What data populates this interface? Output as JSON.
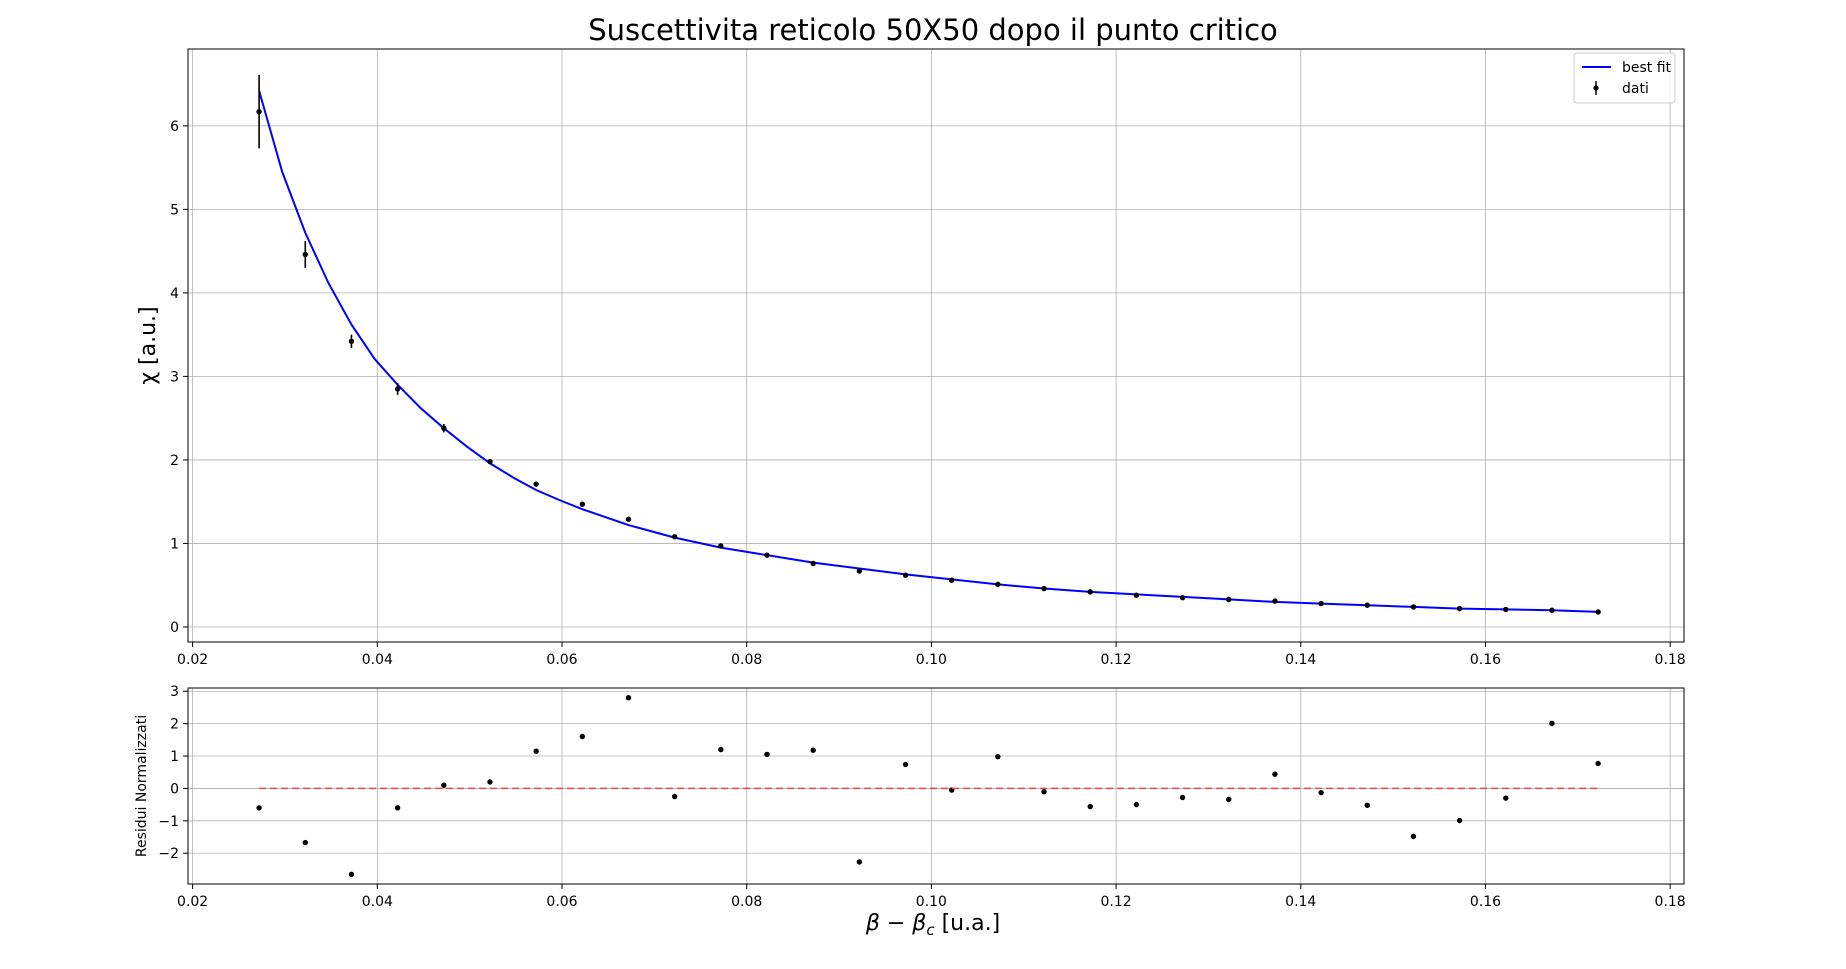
{
  "chart_data": [
    {
      "type": "scatter",
      "title": "Suscettivita reticolo 50X50 dopo il punto critico",
      "xlabel": "",
      "ylabel": "χ [a.u.]",
      "xlim": [
        0.0195,
        0.1815
      ],
      "ylim": [
        -0.18,
        6.92
      ],
      "xticks": [
        "0.02",
        "0.04",
        "0.06",
        "0.08",
        "0.10",
        "0.12",
        "0.14",
        "0.16",
        "0.18"
      ],
      "yticks": [
        "0",
        "1",
        "2",
        "3",
        "4",
        "5",
        "6"
      ],
      "grid": true,
      "legend": {
        "position": "top-right",
        "entries": [
          {
            "label": "best fit",
            "style": "line",
            "color": "#0000ff"
          },
          {
            "label": "dati",
            "style": "errorbar-point",
            "color": "#000000"
          }
        ]
      },
      "series": [
        {
          "name": "dati",
          "kind": "errorbar",
          "color": "#000000",
          "x": [
            0.0272,
            0.0322,
            0.0372,
            0.0422,
            0.0472,
            0.0522,
            0.0572,
            0.0622,
            0.0672,
            0.0722,
            0.0772,
            0.0822,
            0.0872,
            0.0922,
            0.0972,
            0.1022,
            0.1072,
            0.1122,
            0.1172,
            0.1222,
            0.1272,
            0.1322,
            0.1372,
            0.1422,
            0.1472,
            0.1522,
            0.1572,
            0.1622,
            0.1672,
            0.1722
          ],
          "y": [
            6.17,
            4.46,
            3.42,
            2.85,
            2.38,
            1.98,
            1.71,
            1.47,
            1.29,
            1.08,
            0.97,
            0.86,
            0.76,
            0.67,
            0.62,
            0.56,
            0.51,
            0.46,
            0.42,
            0.38,
            0.35,
            0.33,
            0.31,
            0.28,
            0.26,
            0.24,
            0.22,
            0.21,
            0.2,
            0.18
          ],
          "yerr": [
            0.44,
            0.16,
            0.08,
            0.07,
            0.05,
            0.03,
            0.03,
            0.02,
            0.02,
            0.02,
            0.02,
            0.02,
            0.01,
            0.01,
            0.01,
            0.01,
            0.01,
            0.01,
            0.01,
            0.01,
            0.01,
            0.01,
            0.01,
            0.01,
            0.01,
            0.01,
            0.01,
            0.01,
            0.01,
            0.01
          ]
        },
        {
          "name": "best fit",
          "kind": "line",
          "color": "#0000ff",
          "x": [
            0.0272,
            0.0297,
            0.0322,
            0.0347,
            0.0372,
            0.0397,
            0.0422,
            0.0447,
            0.0472,
            0.0497,
            0.0522,
            0.0547,
            0.0572,
            0.0597,
            0.0622,
            0.0672,
            0.0722,
            0.0772,
            0.0822,
            0.0872,
            0.0922,
            0.0972,
            0.1022,
            0.1072,
            0.1122,
            0.1172,
            0.1222,
            0.1272,
            0.1322,
            0.1372,
            0.1422,
            0.1472,
            0.1522,
            0.1572,
            0.1622,
            0.1672,
            0.1722
          ],
          "y": [
            6.42,
            5.45,
            4.72,
            4.12,
            3.62,
            3.21,
            2.9,
            2.62,
            2.38,
            2.16,
            1.96,
            1.79,
            1.64,
            1.52,
            1.41,
            1.22,
            1.07,
            0.95,
            0.86,
            0.77,
            0.7,
            0.63,
            0.57,
            0.51,
            0.46,
            0.42,
            0.39,
            0.36,
            0.33,
            0.3,
            0.28,
            0.26,
            0.24,
            0.22,
            0.21,
            0.2,
            0.18
          ]
        }
      ]
    },
    {
      "type": "scatter",
      "title": "",
      "xlabel": "β − β_c [u.a.]",
      "xlabel_parts": {
        "beta": "β",
        "minus": " − ",
        "beta_c": "β",
        "sub": "c",
        "unit": " [u.a.]"
      },
      "ylabel": "Residui Normalizzati",
      "xlim": [
        0.0195,
        0.1815
      ],
      "ylim": [
        -2.95,
        3.1
      ],
      "xticks": [
        "0.02",
        "0.04",
        "0.06",
        "0.08",
        "0.10",
        "0.12",
        "0.14",
        "0.16",
        "0.18"
      ],
      "yticks": [
        "−2",
        "−1",
        "0",
        "1",
        "2",
        "3"
      ],
      "ytick_values": [
        -2,
        -1,
        0,
        1,
        2,
        3
      ],
      "grid": true,
      "series": [
        {
          "name": "",
          "kind": "points",
          "color": "#000000",
          "x": [
            0.0272,
            0.0322,
            0.0372,
            0.0422,
            0.0472,
            0.0522,
            0.0572,
            0.0622,
            0.0672,
            0.0722,
            0.0772,
            0.0822,
            0.0872,
            0.0922,
            0.0972,
            0.1022,
            0.1072,
            0.1122,
            0.1172,
            0.1222,
            0.1272,
            0.1322,
            0.1372,
            0.1422,
            0.1472,
            0.1522,
            0.1572,
            0.1622,
            0.1672,
            0.1722
          ],
          "y": [
            -0.6,
            -1.67,
            -2.65,
            -0.6,
            0.1,
            0.2,
            1.15,
            1.6,
            2.8,
            -0.25,
            1.2,
            1.05,
            1.18,
            -2.27,
            0.74,
            -0.05,
            0.98,
            -0.1,
            -0.56,
            -0.5,
            -0.28,
            -0.34,
            0.44,
            -0.13,
            -0.52,
            -1.48,
            -0.99,
            -0.3,
            2.01,
            0.77
          ]
        },
        {
          "name": "",
          "kind": "dashed-line",
          "color": "#e8484a",
          "x": [
            0.0272,
            0.1722
          ],
          "y": [
            0,
            0
          ]
        }
      ]
    }
  ]
}
